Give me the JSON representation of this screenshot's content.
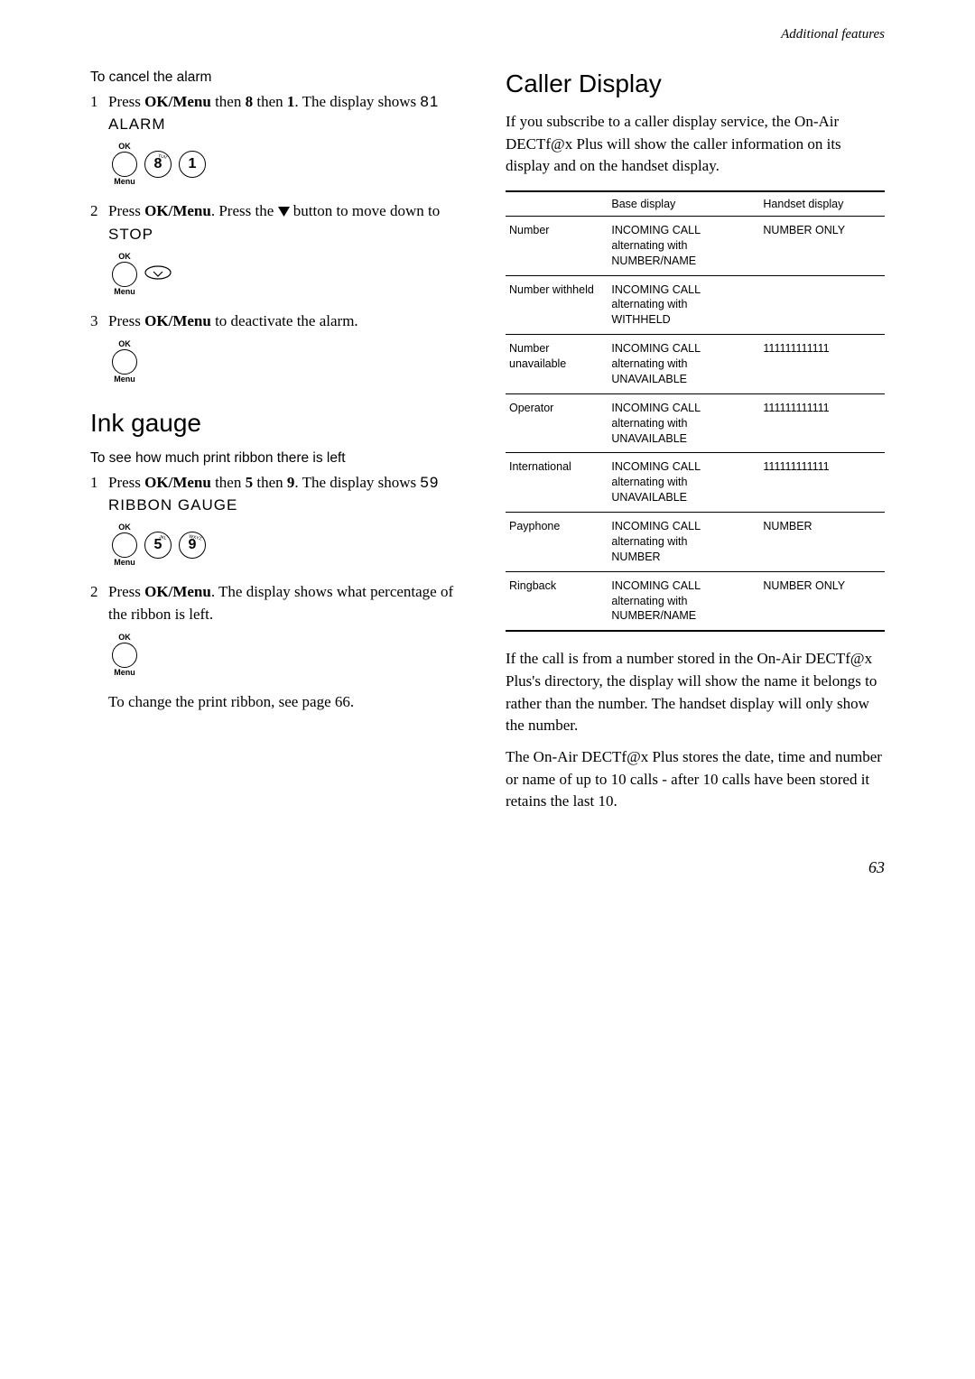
{
  "header": {
    "section": "Additional features"
  },
  "left": {
    "cancel_alarm": {
      "title": "To cancel the alarm",
      "step1": {
        "num": "1",
        "pre": "Press ",
        "bold1": "OK/Menu",
        "mid1": " then ",
        "bold2": "8",
        "mid2": " then ",
        "bold3": "1",
        "post": ". The display shows ",
        "mono": "81 ALARM"
      },
      "step2": {
        "num": "2",
        "pre": "Press ",
        "bold1": "OK/Menu",
        "mid1": ". Press the ",
        "mid2": " button to move down to ",
        "mono": "STOP"
      },
      "step3": {
        "num": "3",
        "pre": "Press ",
        "bold1": "OK/Menu",
        "post": " to deactivate the alarm."
      },
      "ok_label_top": "OK",
      "ok_label_bot": "Menu",
      "key8": "8",
      "key8_letters": "TUV",
      "key1": "1",
      "key5": "5",
      "key5_letters": "JKL",
      "key9": "9",
      "key9_letters": "WXYZ"
    },
    "ink_gauge": {
      "heading": "Ink gauge",
      "intro": "To see how much print ribbon there is left",
      "step1": {
        "num": "1",
        "pre": "Press ",
        "bold1": "OK/Menu",
        "mid1": " then ",
        "bold2": "5",
        "mid2": " then ",
        "bold3": "9",
        "post": ". The display shows ",
        "mono": "59 RIBBON GAUGE"
      },
      "step2": {
        "num": "2",
        "pre": "Press ",
        "bold1": "OK/Menu",
        "post": ". The display shows what percentage of the ribbon is left."
      },
      "footer": "To change the print ribbon, see page 66."
    }
  },
  "right": {
    "heading": "Caller Display",
    "intro": "If you subscribe to a caller display service, the On-Air DECTf@x Plus will show the caller information on its display and on the handset display.",
    "table": {
      "col1": "",
      "col2": "Base display",
      "col3": "Handset display",
      "rows": [
        {
          "c1": "Number",
          "c2a": "INCOMING CALL",
          "c2b": "alternating with",
          "c2c": "NUMBER/NAME",
          "c3": "NUMBER ONLY"
        },
        {
          "c1": "Number withheld",
          "c2a": "INCOMING CALL",
          "c2b": "alternating with",
          "c2c": "WITHHELD",
          "c3": ""
        },
        {
          "c1": "Number unavailable",
          "c2a": "INCOMING CALL",
          "c2b": "alternating with",
          "c2c": "UNAVAILABLE",
          "c3": "111111111111"
        },
        {
          "c1": "Operator",
          "c2a": "INCOMING CALL",
          "c2b": "alternating with",
          "c2c": "UNAVAILABLE",
          "c3": "111111111111"
        },
        {
          "c1": "International",
          "c2a": "INCOMING CALL",
          "c2b": "alternating with",
          "c2c": "UNAVAILABLE",
          "c3": "111111111111"
        },
        {
          "c1": "Payphone",
          "c2a": "INCOMING CALL",
          "c2b": "alternating with",
          "c2c": "NUMBER",
          "c3": "NUMBER"
        },
        {
          "c1": "Ringback",
          "c2a": "INCOMING CALL",
          "c2b": "alternating with",
          "c2c": "NUMBER/NAME",
          "c3": "NUMBER ONLY"
        }
      ]
    },
    "para1": "If  the call is from a number stored in the On-Air DECTf@x Plus's directory, the display will show the name it belongs to rather than the number. The handset display will only show the number.",
    "para2": "The On-Air DECTf@x Plus stores the date, time and number or name of up to 10 calls - after 10 calls have been stored it retains the last 10."
  },
  "page_number": "63"
}
